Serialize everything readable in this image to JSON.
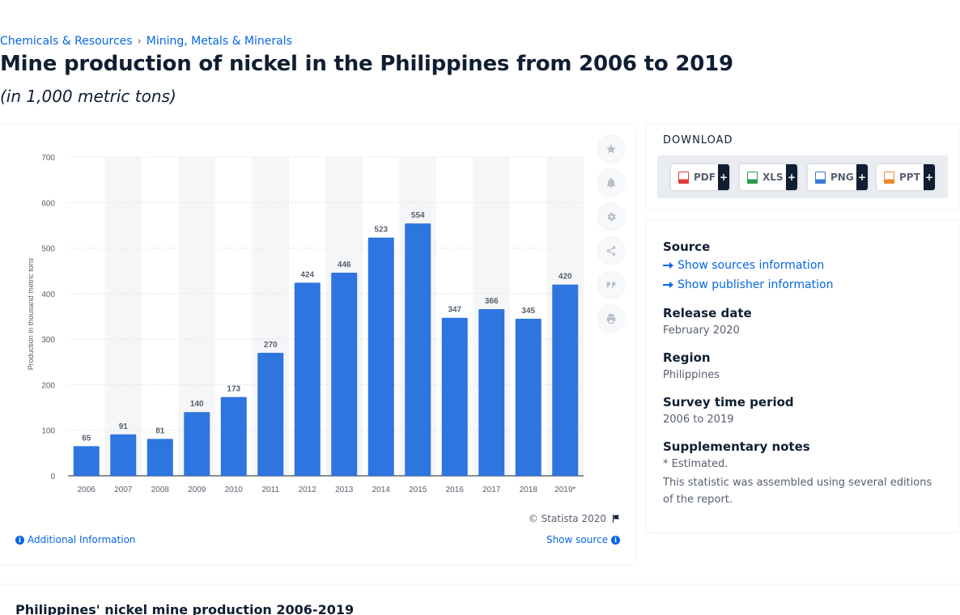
{
  "breadcrumb": {
    "items": [
      "Chemicals & Resources",
      "Mining, Metals & Minerals"
    ],
    "separator": "›"
  },
  "page": {
    "title": "Mine production of nickel in the Philippines from 2006 to 2019",
    "subtitle": "(in 1,000 metric tons)"
  },
  "chart_data": {
    "type": "bar",
    "categories": [
      "2006",
      "2007",
      "2008",
      "2009",
      "2010",
      "2011",
      "2012",
      "2013",
      "2014",
      "2015",
      "2016",
      "2017",
      "2018",
      "2019*"
    ],
    "values": [
      65,
      91,
      81,
      140,
      173,
      270,
      424,
      446,
      523,
      554,
      347,
      366,
      345,
      420
    ],
    "ylabel": "Production in thousand metric tons",
    "ylim": [
      0,
      700
    ],
    "yticks": [
      0,
      100,
      200,
      300,
      400,
      500,
      600,
      700
    ],
    "grid": true,
    "bar_color": "#2f75e0",
    "data_labels": true
  },
  "chart_footer": {
    "copyright": "© Statista 2020",
    "additional_info": "Additional Information",
    "show_source": "Show source"
  },
  "toolbar": {
    "icons": [
      "star-icon",
      "bell-icon",
      "gear-icon",
      "share-icon",
      "quote-icon",
      "print-icon"
    ]
  },
  "download": {
    "title": "DOWNLOAD",
    "buttons": [
      {
        "label": "PDF",
        "color": "#e23b3b"
      },
      {
        "label": "XLS",
        "color": "#2e9a4a"
      },
      {
        "label": "PNG",
        "color": "#3a7bd5"
      },
      {
        "label": "PPT",
        "color": "#e88a2d"
      }
    ],
    "plus": "+"
  },
  "info": {
    "source_label": "Source",
    "show_sources": "Show sources information",
    "show_publisher": "Show publisher information",
    "release_label": "Release date",
    "release_value": "February 2020",
    "region_label": "Region",
    "region_value": "Philippines",
    "survey_label": "Survey time period",
    "survey_value": "2006 to 2019",
    "notes_label": "Supplementary notes",
    "notes_line1": "* Estimated.",
    "notes_line2": "This statistic was assembled using several editions of the report."
  },
  "bottom": {
    "title": "Philippines' nickel mine production 2006-2019"
  },
  "colors": {
    "accent": "#0666e5",
    "bar": "#2f75e0",
    "text_dark": "#0f1e33"
  }
}
